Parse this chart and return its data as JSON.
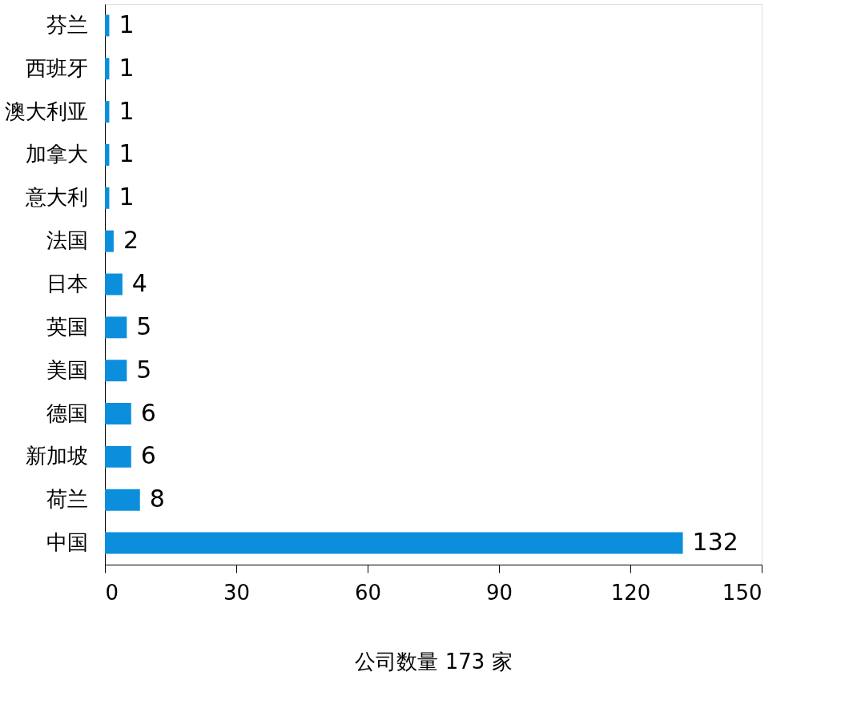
{
  "chart_data": {
    "type": "bar",
    "orientation": "horizontal",
    "xlabel": "公司数量 173 家",
    "categories": [
      "芬兰",
      "西班牙",
      "澳大利亚",
      "加拿大",
      "意大利",
      "法国",
      "日本",
      "英国",
      "美国",
      "德国",
      "新加坡",
      "荷兰",
      "中国"
    ],
    "values": [
      1,
      1,
      1,
      1,
      1,
      2,
      4,
      5,
      5,
      6,
      6,
      8,
      132
    ],
    "color": "#0b8fdc",
    "xlim": [
      0,
      150
    ],
    "xticks": [
      0,
      30,
      60,
      90,
      120,
      150
    ],
    "data_labels": true,
    "grid": false
  }
}
